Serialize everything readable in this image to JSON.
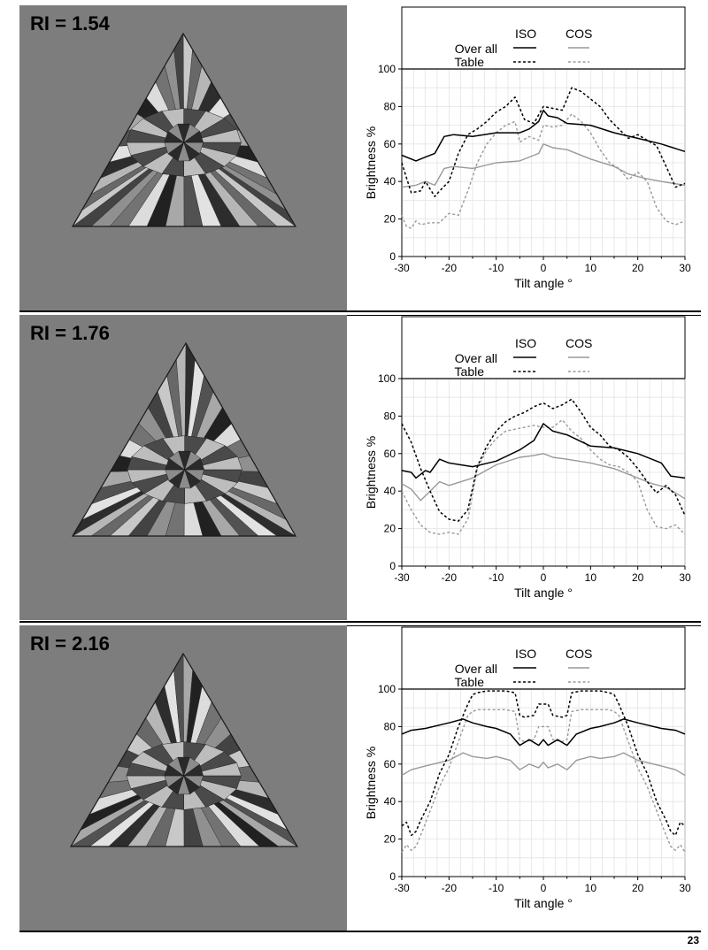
{
  "page_number": "23",
  "legend": {
    "iso": "ISO",
    "cos": "COS",
    "overall": "Over all",
    "table": "Table"
  },
  "colors": {
    "iso": "#000000",
    "cos": "#999999",
    "gem_background": "#7d7d7d"
  },
  "chart_data": [
    {
      "type": "line",
      "ri_label": "RI = 1.54",
      "xlabel": "Tilt angle °",
      "ylabel": "Brightness %",
      "xlim": [
        -30,
        30
      ],
      "ylim": [
        0,
        100
      ],
      "xticks": [
        -30,
        -20,
        -10,
        0,
        10,
        20,
        30
      ],
      "yticks": [
        0,
        20,
        40,
        60,
        80,
        100
      ],
      "grid": true,
      "legend_position": "top",
      "series": [
        {
          "name": "ISO Over all",
          "style": "iso-solid",
          "x": [
            -30,
            -27,
            -25,
            -23,
            -21,
            -19,
            -15,
            -10,
            -5,
            -3,
            -1,
            0,
            1,
            3,
            5,
            10,
            15,
            20,
            25,
            30
          ],
          "y": [
            54,
            51,
            53,
            55,
            64,
            65,
            64,
            66,
            66,
            68,
            72,
            78,
            75,
            74,
            71,
            70,
            66,
            63,
            60,
            56
          ]
        },
        {
          "name": "ISO Table",
          "style": "iso-dashed",
          "x": [
            -30,
            -29,
            -28,
            -26,
            -25,
            -23,
            -22,
            -20,
            -18,
            -16,
            -14,
            -12,
            -10,
            -8,
            -6,
            -4,
            -2,
            0,
            2,
            4,
            6,
            8,
            10,
            12,
            14,
            16,
            18,
            20,
            22,
            24,
            26,
            28,
            30
          ],
          "y": [
            50,
            42,
            34,
            35,
            40,
            32,
            35,
            40,
            55,
            65,
            68,
            72,
            77,
            80,
            85,
            73,
            71,
            80,
            79,
            78,
            90,
            88,
            84,
            80,
            73,
            68,
            63,
            65,
            62,
            59,
            48,
            37,
            39
          ]
        },
        {
          "name": "COS Over all",
          "style": "cos-solid",
          "x": [
            -30,
            -27,
            -25,
            -23,
            -21,
            -19,
            -15,
            -10,
            -5,
            -3,
            -1,
            0,
            2,
            5,
            10,
            15,
            18,
            21,
            25,
            30
          ],
          "y": [
            37,
            38,
            40,
            38,
            47,
            48,
            47,
            50,
            51,
            53,
            55,
            60,
            58,
            57,
            52,
            48,
            44,
            42,
            40,
            38
          ]
        },
        {
          "name": "COS Table",
          "style": "cos-dashed",
          "x": [
            -30,
            -29,
            -28,
            -27,
            -26,
            -24,
            -22,
            -20,
            -18,
            -16,
            -14,
            -12,
            -10,
            -8,
            -6,
            -5,
            -3,
            -1,
            0,
            2,
            4,
            6,
            8,
            10,
            12,
            14,
            16,
            18,
            20,
            22,
            24,
            26,
            28,
            30
          ],
          "y": [
            22,
            16,
            15,
            19,
            17,
            18,
            18,
            23,
            22,
            35,
            50,
            60,
            66,
            70,
            72,
            61,
            64,
            62,
            70,
            69,
            70,
            76,
            72,
            66,
            57,
            50,
            47,
            41,
            45,
            40,
            26,
            19,
            17,
            19
          ]
        }
      ]
    },
    {
      "type": "line",
      "ri_label": "RI = 1.76",
      "xlabel": "Tilt angle °",
      "ylabel": "Brightness %",
      "xlim": [
        -30,
        30
      ],
      "ylim": [
        0,
        100
      ],
      "xticks": [
        -30,
        -20,
        -10,
        0,
        10,
        20,
        30
      ],
      "yticks": [
        0,
        20,
        40,
        60,
        80,
        100
      ],
      "grid": true,
      "legend_position": "top",
      "series": [
        {
          "name": "ISO Over all",
          "style": "iso-solid",
          "x": [
            -30,
            -28,
            -27,
            -25,
            -24,
            -22,
            -20,
            -15,
            -10,
            -5,
            -2,
            0,
            2,
            5,
            10,
            15,
            20,
            25,
            27,
            30
          ],
          "y": [
            51,
            50,
            47,
            51,
            50,
            57,
            55,
            53,
            56,
            62,
            67,
            76,
            72,
            70,
            64,
            63,
            60,
            55,
            48,
            47
          ]
        },
        {
          "name": "ISO Table",
          "style": "iso-dashed",
          "x": [
            -30,
            -28,
            -26,
            -24,
            -22,
            -20,
            -18,
            -16,
            -14,
            -12,
            -10,
            -8,
            -6,
            -4,
            -2,
            0,
            2,
            4,
            6,
            8,
            10,
            12,
            14,
            16,
            18,
            20,
            22,
            24,
            26,
            28,
            30
          ],
          "y": [
            76,
            66,
            52,
            40,
            29,
            25,
            24,
            30,
            53,
            64,
            72,
            77,
            80,
            82,
            85,
            87,
            84,
            86,
            89,
            82,
            74,
            70,
            64,
            62,
            58,
            52,
            45,
            39,
            43,
            38,
            27
          ]
        },
        {
          "name": "COS Over all",
          "style": "cos-solid",
          "x": [
            -30,
            -28,
            -26,
            -24,
            -22,
            -20,
            -15,
            -10,
            -5,
            -2,
            0,
            2,
            5,
            10,
            15,
            20,
            23,
            26,
            28,
            30
          ],
          "y": [
            44,
            41,
            35,
            40,
            45,
            43,
            47,
            54,
            58,
            59,
            60,
            58,
            57,
            55,
            52,
            47,
            44,
            42,
            39,
            36
          ]
        },
        {
          "name": "COS Table",
          "style": "cos-dashed",
          "x": [
            -30,
            -29,
            -28,
            -26,
            -24,
            -22,
            -20,
            -18,
            -16,
            -14,
            -12,
            -10,
            -8,
            -6,
            -4,
            -2,
            0,
            2,
            4,
            6,
            8,
            10,
            12,
            14,
            16,
            18,
            20,
            22,
            24,
            26,
            28,
            30
          ],
          "y": [
            40,
            35,
            30,
            22,
            18,
            17,
            18,
            17,
            25,
            52,
            62,
            68,
            72,
            73,
            74,
            75,
            74,
            74,
            78,
            72,
            68,
            62,
            57,
            54,
            53,
            50,
            45,
            30,
            21,
            20,
            22,
            17
          ]
        }
      ]
    },
    {
      "type": "line",
      "ri_label": "RI = 2.16",
      "xlabel": "Tilt angle °",
      "ylabel": "Brightness %",
      "xlim": [
        -30,
        30
      ],
      "ylim": [
        0,
        100
      ],
      "xticks": [
        -30,
        -20,
        -10,
        0,
        10,
        20,
        30
      ],
      "yticks": [
        0,
        20,
        40,
        60,
        80,
        100
      ],
      "grid": true,
      "legend_position": "top",
      "series": [
        {
          "name": "ISO Over all",
          "style": "iso-solid",
          "x": [
            -30,
            -28,
            -25,
            -20,
            -17,
            -15,
            -12,
            -10,
            -7,
            -5,
            -3,
            -1,
            0,
            1,
            3,
            5,
            7,
            10,
            12,
            15,
            17,
            20,
            25,
            28,
            30
          ],
          "y": [
            76,
            78,
            79,
            82,
            84,
            82,
            80,
            79,
            76,
            70,
            73,
            70,
            73,
            70,
            73,
            70,
            76,
            79,
            80,
            82,
            84,
            82,
            79,
            78,
            76
          ]
        },
        {
          "name": "ISO Table",
          "style": "iso-dashed",
          "x": [
            -30,
            -29,
            -28,
            -27,
            -26,
            -24,
            -22,
            -20,
            -18,
            -16,
            -15,
            -14,
            -12,
            -10,
            -8,
            -6,
            -5,
            -4,
            -2,
            -1,
            1,
            2,
            4,
            5,
            6,
            8,
            10,
            12,
            14,
            15,
            16,
            18,
            20,
            22,
            24,
            26,
            27,
            28,
            29,
            30
          ],
          "y": [
            27,
            29,
            22,
            24,
            30,
            40,
            55,
            65,
            80,
            92,
            97,
            98,
            99,
            99,
            99,
            98,
            86,
            85,
            86,
            92,
            92,
            86,
            85,
            86,
            98,
            99,
            99,
            99,
            98,
            97,
            92,
            80,
            65,
            55,
            40,
            30,
            24,
            22,
            29,
            27
          ]
        },
        {
          "name": "COS Over all",
          "style": "cos-solid",
          "x": [
            -30,
            -28,
            -25,
            -20,
            -17,
            -15,
            -12,
            -10,
            -7,
            -5,
            -3,
            -1,
            0,
            1,
            3,
            5,
            7,
            10,
            12,
            15,
            17,
            20,
            25,
            28,
            30
          ],
          "y": [
            54,
            57,
            59,
            62,
            66,
            64,
            63,
            64,
            62,
            57,
            60,
            58,
            61,
            58,
            60,
            57,
            62,
            64,
            63,
            64,
            66,
            62,
            59,
            57,
            54
          ]
        },
        {
          "name": "COS Table",
          "style": "cos-dashed",
          "x": [
            -30,
            -29,
            -28,
            -27,
            -26,
            -24,
            -22,
            -20,
            -18,
            -16,
            -15,
            -14,
            -12,
            -10,
            -8,
            -6,
            -5,
            -4,
            -2,
            -1,
            1,
            2,
            4,
            5,
            6,
            8,
            10,
            12,
            14,
            15,
            16,
            18,
            20,
            22,
            24,
            26,
            27,
            28,
            29,
            30
          ],
          "y": [
            13,
            17,
            14,
            16,
            22,
            35,
            48,
            58,
            72,
            86,
            88,
            89,
            89,
            89,
            89,
            88,
            73,
            72,
            73,
            80,
            80,
            73,
            72,
            73,
            88,
            89,
            89,
            89,
            89,
            88,
            86,
            72,
            58,
            48,
            35,
            22,
            16,
            14,
            17,
            13
          ]
        }
      ]
    }
  ]
}
